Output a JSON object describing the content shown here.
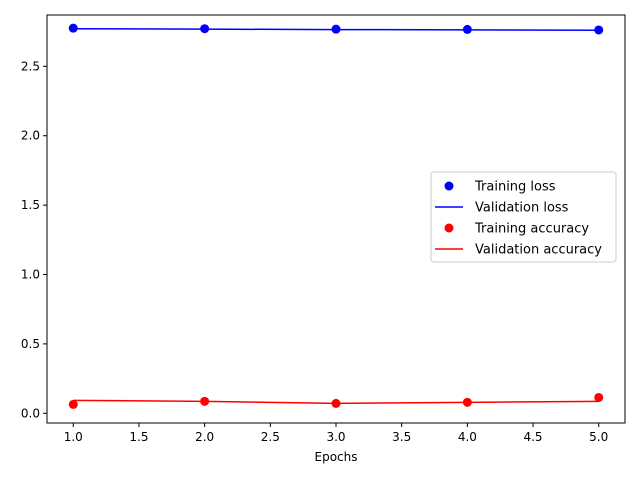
{
  "chart_data": {
    "type": "line",
    "title": "",
    "xlabel": "Epochs",
    "ylabel": "",
    "x": [
      1,
      2,
      3,
      4,
      5
    ],
    "xlim": [
      0.8,
      5.2
    ],
    "ylim": [
      -0.07,
      2.87
    ],
    "xticks": [
      1.0,
      1.5,
      2.0,
      2.5,
      3.0,
      3.5,
      4.0,
      4.5,
      5.0
    ],
    "xtick_labels": [
      "1.0",
      "1.5",
      "2.0",
      "2.5",
      "3.0",
      "3.5",
      "4.0",
      "4.5",
      "5.0"
    ],
    "yticks": [
      0.0,
      0.5,
      1.0,
      1.5,
      2.0,
      2.5
    ],
    "ytick_labels": [
      "0.0",
      "0.5",
      "1.0",
      "1.5",
      "2.0",
      "2.5"
    ],
    "grid": false,
    "legend_position": "right",
    "series": [
      {
        "name": "Training loss",
        "style": "points",
        "color": "#0000ff",
        "values": [
          2.775,
          2.771,
          2.768,
          2.766,
          2.762
        ]
      },
      {
        "name": "Validation loss",
        "style": "line",
        "color": "#0000ff",
        "values": [
          2.771,
          2.768,
          2.765,
          2.763,
          2.76
        ]
      },
      {
        "name": "Training accuracy",
        "style": "points",
        "color": "#ff0000",
        "values": [
          0.064,
          0.086,
          0.071,
          0.079,
          0.114
        ]
      },
      {
        "name": "Validation accuracy",
        "style": "line",
        "color": "#ff0000",
        "values": [
          0.093,
          0.086,
          0.071,
          0.079,
          0.086
        ]
      }
    ]
  }
}
